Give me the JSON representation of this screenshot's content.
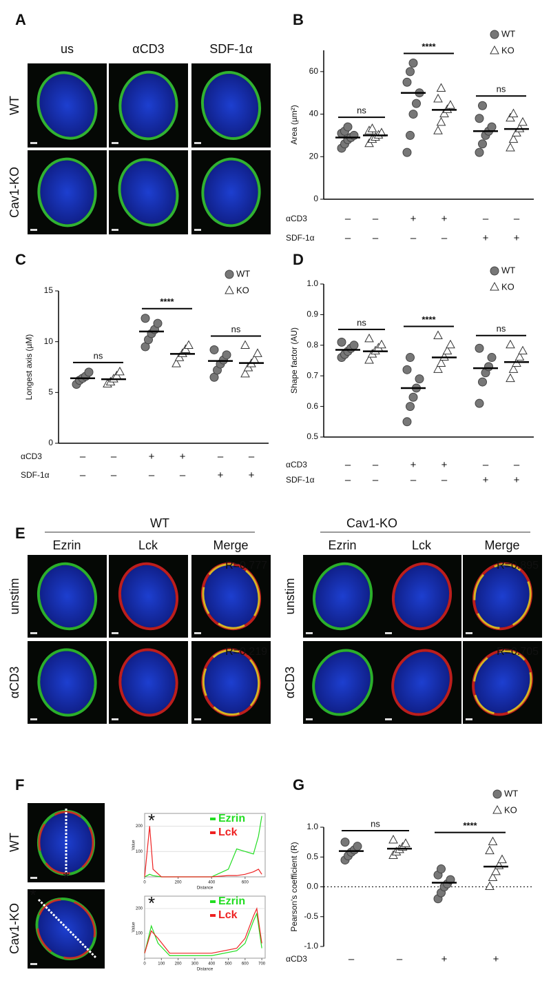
{
  "panels": {
    "A": {
      "label": "A",
      "columns": [
        "us",
        "αCD3",
        "SDF-1α"
      ],
      "rows": [
        "WT",
        "Cav1-KO"
      ]
    },
    "B": {
      "label": "B"
    },
    "C": {
      "label": "C"
    },
    "D": {
      "label": "D"
    },
    "E": {
      "label": "E",
      "groups": [
        "WT",
        "Cav1-KO"
      ],
      "columns": [
        "Ezrin",
        "Lck",
        "Merge"
      ],
      "rows": [
        "unstim",
        "αCD3"
      ],
      "r_values": [
        [
          "R=0.777",
          "R=0.219"
        ],
        [
          "R=0.895",
          "R=0.705"
        ]
      ]
    },
    "F": {
      "label": "F",
      "rows": [
        "WT",
        "Cav1-KO"
      ],
      "marker": "*"
    },
    "G": {
      "label": "G"
    }
  },
  "chart_data": [
    {
      "type": "dot",
      "ylabel": "Area (µm²)",
      "ylim": [
        0,
        70
      ],
      "yticks": [
        0,
        20,
        40,
        60
      ],
      "series": [
        {
          "name": "WT",
          "marker": "circle",
          "color": "#777777",
          "means": [
            29,
            50,
            32
          ],
          "points": [
            [
              24,
              26,
              28,
              29,
              30,
              31,
              32,
              34
            ],
            [
              22,
              30,
              40,
              45,
              50,
              55,
              60,
              64
            ],
            [
              22,
              26,
              30,
              32,
              34,
              38,
              44
            ]
          ]
        },
        {
          "name": "KO",
          "marker": "triangle",
          "color": "#ffffff",
          "means": [
            30,
            42,
            33
          ],
          "points": [
            [
              26,
              28,
              29,
              30,
              31,
              32,
              33
            ],
            [
              32,
              36,
              40,
              42,
              44,
              47,
              52
            ],
            [
              24,
              28,
              31,
              33,
              36,
              38,
              40
            ]
          ]
        }
      ],
      "annotations": [
        "ns",
        "****",
        "ns"
      ],
      "conditions": [
        {
          "name": "αCD3",
          "signs": [
            "–",
            "–",
            "+",
            "+",
            "–",
            "–"
          ]
        },
        {
          "name": "SDF-1α",
          "signs": [
            "–",
            "–",
            "–",
            "–",
            "+",
            "+"
          ]
        }
      ]
    },
    {
      "type": "dot",
      "ylabel": "Longest axis (µM)",
      "ylim": [
        0,
        15
      ],
      "yticks": [
        0,
        5,
        10,
        15
      ],
      "series": [
        {
          "name": "WT",
          "marker": "circle",
          "color": "#777777",
          "means": [
            6.4,
            11,
            8.1
          ],
          "points": [
            [
              5.8,
              6.2,
              6.4,
              6.6,
              7.0
            ],
            [
              9.5,
              10.2,
              10.8,
              11.2,
              11.8,
              12.3
            ],
            [
              6.5,
              7.2,
              7.8,
              8.2,
              8.7,
              9.2
            ]
          ]
        },
        {
          "name": "KO",
          "marker": "triangle",
          "color": "#ffffff",
          "means": [
            6.3,
            8.8,
            7.9
          ],
          "points": [
            [
              5.8,
              6.0,
              6.3,
              6.6,
              7.0
            ],
            [
              7.8,
              8.4,
              8.8,
              9.2,
              9.6
            ],
            [
              6.8,
              7.4,
              7.8,
              8.2,
              8.8,
              9.6
            ]
          ]
        }
      ],
      "annotations": [
        "ns",
        "****",
        "ns"
      ],
      "conditions": [
        {
          "name": "αCD3",
          "signs": [
            "–",
            "–",
            "+",
            "+",
            "–",
            "–"
          ]
        },
        {
          "name": "SDF-1α",
          "signs": [
            "–",
            "–",
            "–",
            "–",
            "+",
            "+"
          ]
        }
      ]
    },
    {
      "type": "dot",
      "ylabel": "Shape factor (AU)",
      "ylim": [
        0.5,
        1.0
      ],
      "yticks": [
        0.5,
        0.6,
        0.7,
        0.8,
        0.9,
        {
          "value": 1.0,
          "label": "1.0"
        }
      ],
      "series": [
        {
          "name": "WT",
          "marker": "circle",
          "color": "#777777",
          "means": [
            0.785,
            0.66,
            0.725
          ],
          "points": [
            [
              0.76,
              0.77,
              0.78,
              0.79,
              0.8,
              0.81
            ],
            [
              0.55,
              0.6,
              0.63,
              0.66,
              0.69,
              0.72,
              0.76
            ],
            [
              0.61,
              0.68,
              0.71,
              0.73,
              0.76,
              0.79
            ]
          ]
        },
        {
          "name": "KO",
          "marker": "triangle",
          "color": "#ffffff",
          "means": [
            0.78,
            0.76,
            0.745
          ],
          "points": [
            [
              0.75,
              0.77,
              0.78,
              0.79,
              0.8,
              0.82
            ],
            [
              0.72,
              0.74,
              0.76,
              0.78,
              0.8,
              0.83
            ],
            [
              0.69,
              0.72,
              0.74,
              0.76,
              0.78,
              0.8
            ]
          ]
        }
      ],
      "annotations": [
        "ns",
        "****",
        "ns"
      ],
      "conditions": [
        {
          "name": "αCD3",
          "signs": [
            "–",
            "–",
            "+",
            "+",
            "–",
            "–"
          ]
        },
        {
          "name": "SDF-1α",
          "signs": [
            "–",
            "–",
            "–",
            "–",
            "+",
            "+"
          ]
        }
      ]
    },
    {
      "type": "dot",
      "ylabel": "Pearson's coefficient (R)",
      "ylim": [
        -1.0,
        1.0
      ],
      "yticks": [
        {
          "value": -1.0,
          "label": "-1.0"
        },
        -0.5,
        {
          "value": 0,
          "label": "0.0"
        },
        0.5,
        {
          "value": 1.0,
          "label": "1.0"
        }
      ],
      "series": [
        {
          "name": "WT",
          "marker": "circle",
          "color": "#777777",
          "means": [
            0.6,
            0.07
          ],
          "points": [
            [
              0.45,
              0.52,
              0.58,
              0.62,
              0.68,
              0.75
            ],
            [
              -0.2,
              -0.1,
              0,
              0.05,
              0.12,
              0.2,
              0.3
            ]
          ]
        },
        {
          "name": "KO",
          "marker": "triangle",
          "color": "#ffffff",
          "means": [
            0.64,
            0.34
          ],
          "points": [
            [
              0.52,
              0.58,
              0.62,
              0.66,
              0.72,
              0.78
            ],
            [
              0,
              0.15,
              0.25,
              0.35,
              0.45,
              0.6,
              0.75
            ]
          ]
        }
      ],
      "annotations": [
        "ns",
        "****"
      ],
      "conditions": [
        {
          "name": "αCD3",
          "signs": [
            "–",
            "–",
            "+",
            "+"
          ]
        }
      ]
    },
    {
      "type": "line",
      "xlabel": "Distance",
      "ylabel": "Value",
      "xlim": [
        0,
        720
      ],
      "ylim": [
        0,
        250
      ],
      "xticks": [
        0,
        200,
        400,
        600
      ],
      "yticks": [
        100,
        200
      ],
      "x": [
        0,
        30,
        50,
        100,
        400,
        500,
        550,
        600,
        650,
        680,
        700
      ],
      "series": [
        {
          "name": "Ezrin",
          "color": "#22dd22",
          "values": [
            0,
            10,
            5,
            0,
            0,
            30,
            110,
            100,
            90,
            160,
            240
          ]
        },
        {
          "name": "Lck",
          "color": "#ee2222",
          "values": [
            0,
            200,
            30,
            0,
            0,
            5,
            5,
            10,
            20,
            30,
            10
          ]
        }
      ]
    },
    {
      "type": "line",
      "xlabel": "Distance",
      "ylabel": "Value",
      "xlim": [
        0,
        720
      ],
      "ylim": [
        0,
        250
      ],
      "xticks": [
        0,
        100,
        200,
        300,
        400,
        500,
        600,
        700
      ],
      "yticks": [
        100,
        200
      ],
      "x": [
        0,
        40,
        80,
        150,
        400,
        550,
        600,
        650,
        670,
        700
      ],
      "series": [
        {
          "name": "Ezrin",
          "color": "#22dd22",
          "values": [
            20,
            130,
            60,
            10,
            10,
            30,
            60,
            150,
            180,
            40
          ]
        },
        {
          "name": "Lck",
          "color": "#ee2222",
          "values": [
            20,
            110,
            80,
            20,
            20,
            40,
            80,
            170,
            200,
            60
          ]
        }
      ]
    }
  ]
}
